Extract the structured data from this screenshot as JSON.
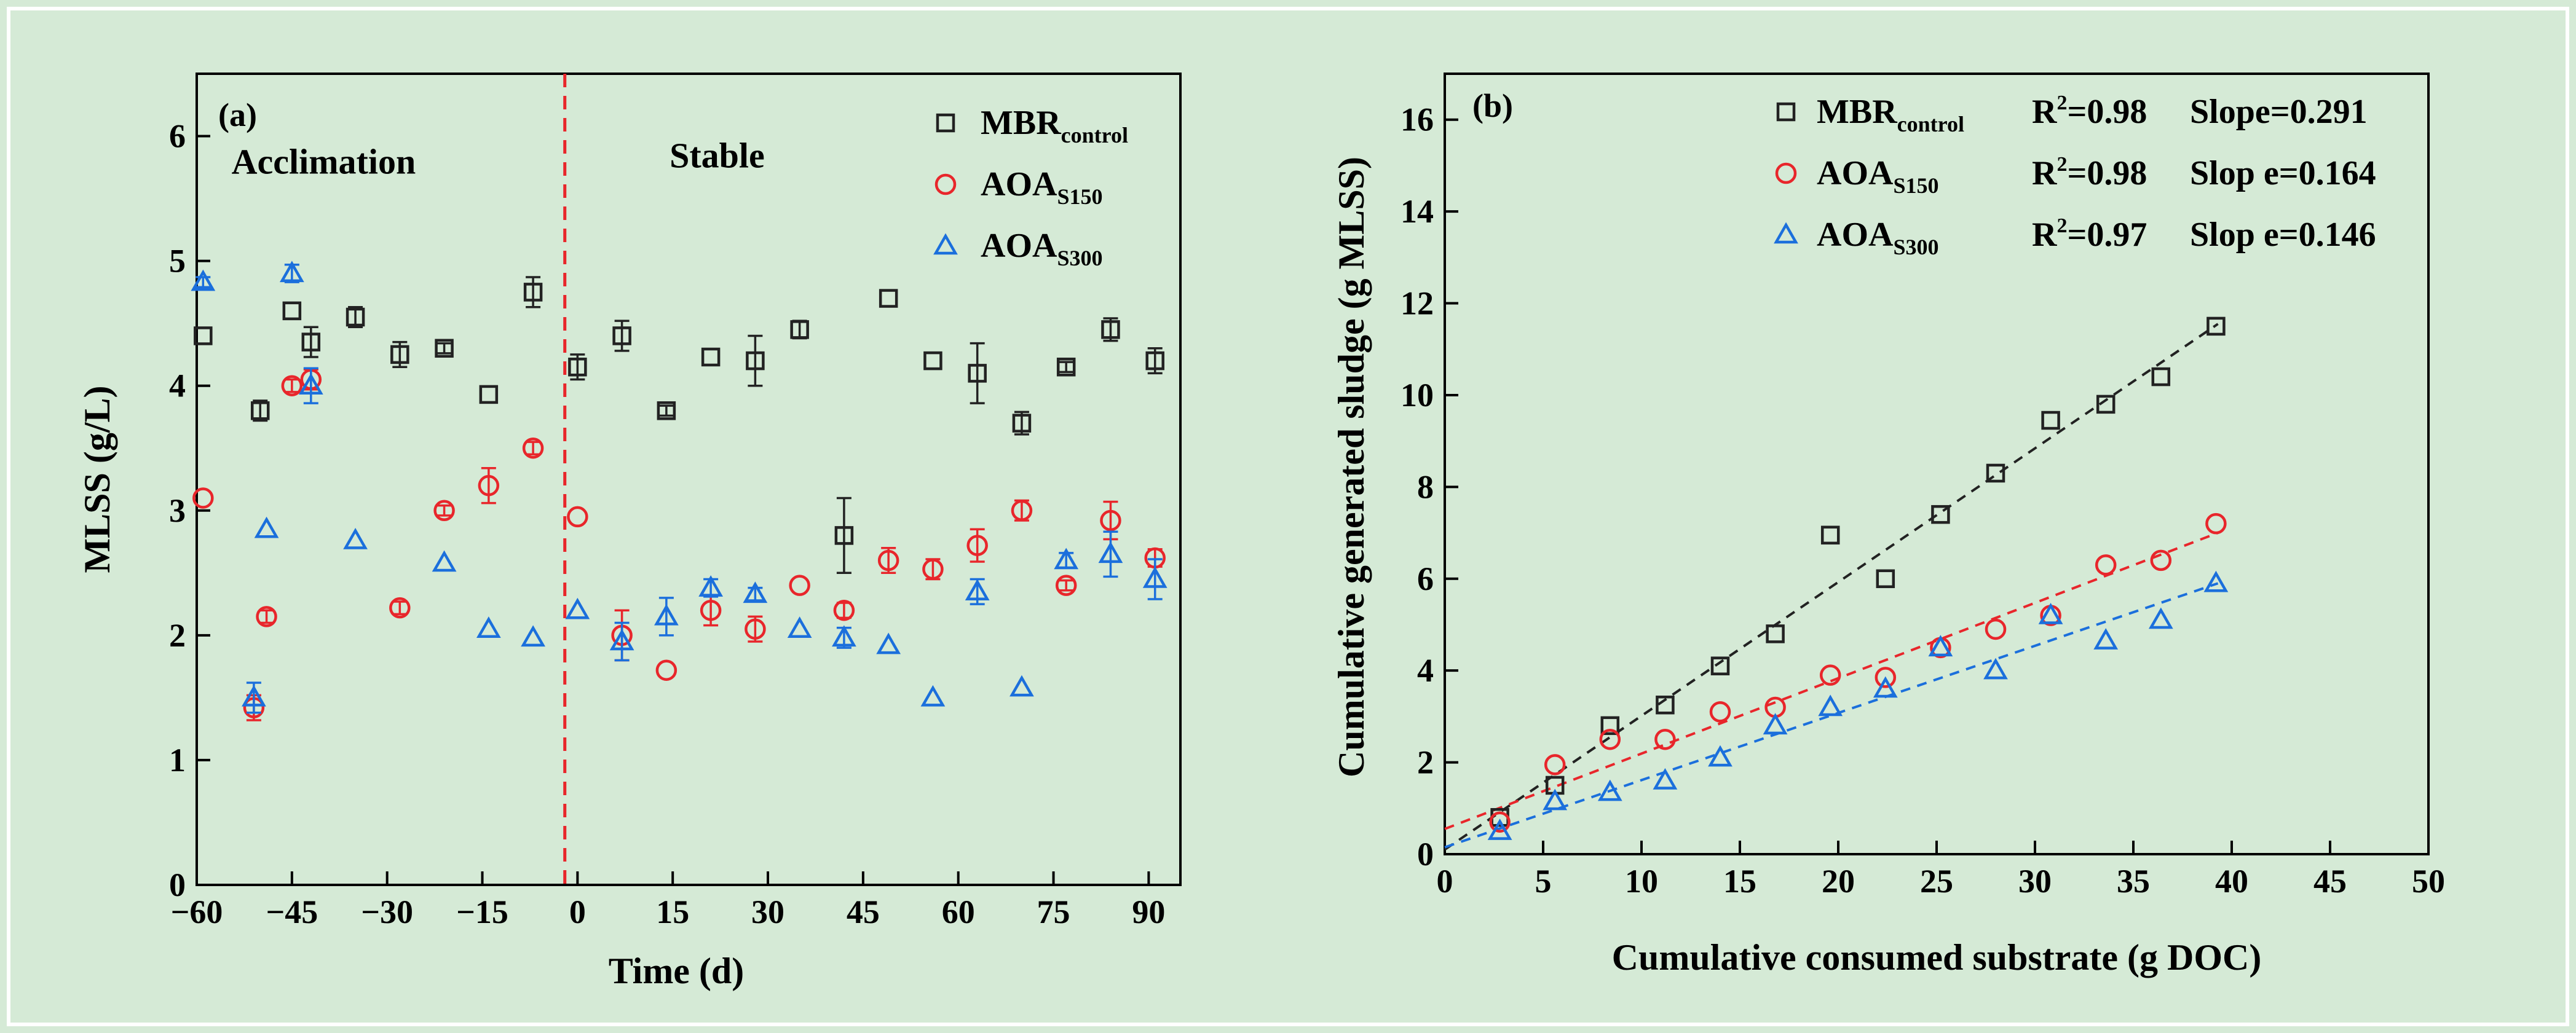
{
  "colors": {
    "background": "#d5ead6",
    "frame": "#ffffff",
    "mbr": "#222222",
    "aoa150": "#e8262b",
    "aoa300": "#1b6fdc",
    "divider": "#e8262b"
  },
  "chart_data": [
    {
      "type": "scatter",
      "panel_label": "(a)",
      "xlabel": "Time (d)",
      "ylabel": "MLSS (g/L)",
      "xlim": [
        -60,
        95
      ],
      "ylim": [
        0,
        6.5
      ],
      "x_ticks": [
        -60,
        -45,
        -30,
        -15,
        0,
        15,
        30,
        45,
        60,
        75,
        90
      ],
      "x_tick_labels": [
        "−60",
        "−45",
        "−30",
        "−15",
        "0",
        "15",
        "30",
        "45",
        "60",
        "75",
        "90"
      ],
      "y_ticks": [
        0,
        1,
        2,
        3,
        4,
        5,
        6
      ],
      "y_tick_labels": [
        "0",
        "1",
        "2",
        "3",
        "4",
        "5",
        "6"
      ],
      "divider_x": -2,
      "regions": [
        {
          "label": "Acclimation",
          "x": -40,
          "y": 5.7
        },
        {
          "label": "Stable",
          "x": 22,
          "y": 5.75
        }
      ],
      "legend_position": "top-right",
      "series": [
        {
          "name": "MBR",
          "subscript": "control",
          "marker": "square",
          "color": "#222222",
          "x": [
            -59,
            -50,
            -45,
            -42,
            -35,
            -28,
            -21,
            -14,
            -7,
            0,
            7,
            14,
            21,
            28,
            35,
            42,
            49,
            56,
            63,
            70,
            77,
            84,
            91
          ],
          "y": [
            4.4,
            3.8,
            4.6,
            4.35,
            4.55,
            4.25,
            4.3,
            3.93,
            4.75,
            4.15,
            4.4,
            3.8,
            4.23,
            4.2,
            4.45,
            2.8,
            4.7,
            4.2,
            4.1,
            3.7,
            4.15,
            4.45,
            4.2
          ],
          "err": [
            0.03,
            0.08,
            0.03,
            0.12,
            0.08,
            0.1,
            0.04,
            0.03,
            0.12,
            0.1,
            0.12,
            0.04,
            0.03,
            0.2,
            0.07,
            0.3,
            0.03,
            0.03,
            0.24,
            0.09,
            0.04,
            0.09,
            0.1
          ]
        },
        {
          "name": "AOA",
          "subscript": "S150",
          "marker": "circle",
          "color": "#e8262b",
          "x": [
            -59,
            -51,
            -49,
            -45,
            -42,
            -28,
            -21,
            -14,
            -7,
            0,
            7,
            14,
            21,
            28,
            35,
            42,
            49,
            56,
            63,
            70,
            77,
            84,
            91
          ],
          "y": [
            3.1,
            1.42,
            2.15,
            4.0,
            4.05,
            2.22,
            3.0,
            3.2,
            3.5,
            2.95,
            2.0,
            1.72,
            2.2,
            2.05,
            2.4,
            2.2,
            2.6,
            2.53,
            2.72,
            3.0,
            2.4,
            2.92,
            2.62
          ],
          "err": [
            0.03,
            0.1,
            0.05,
            0.05,
            0.08,
            0.05,
            0.04,
            0.14,
            0.05,
            0.03,
            0.2,
            0.03,
            0.12,
            0.1,
            0.03,
            0.06,
            0.1,
            0.08,
            0.13,
            0.08,
            0.04,
            0.15,
            0.07
          ]
        },
        {
          "name": "AOA",
          "subscript": "S300",
          "marker": "triangle",
          "color": "#1b6fdc",
          "x": [
            -59,
            -51,
            -49,
            -45,
            -42,
            -35,
            -21,
            -14,
            -7,
            0,
            7,
            14,
            21,
            28,
            35,
            42,
            49,
            56,
            63,
            70,
            77,
            84,
            91
          ],
          "y": [
            4.83,
            1.5,
            2.85,
            4.9,
            4.0,
            2.76,
            2.58,
            2.05,
            1.98,
            2.2,
            1.95,
            2.15,
            2.38,
            2.33,
            2.05,
            1.98,
            1.92,
            1.5,
            2.35,
            1.58,
            2.6,
            2.65,
            2.45
          ],
          "err": [
            0.04,
            0.12,
            0.03,
            0.07,
            0.14,
            0.03,
            0.03,
            0.03,
            0.03,
            0.03,
            0.15,
            0.15,
            0.07,
            0.05,
            0.03,
            0.08,
            0.03,
            0.03,
            0.1,
            0.03,
            0.06,
            0.18,
            0.16
          ]
        }
      ]
    },
    {
      "type": "scatter",
      "panel_label": "(b)",
      "xlabel": "Cumulative consumed substrate  (g DOC)",
      "ylabel": "Cumulative generated sludge  (g MLSS)",
      "xlim": [
        0,
        50
      ],
      "ylim": [
        0,
        17
      ],
      "x_ticks": [
        0,
        5,
        10,
        15,
        20,
        25,
        30,
        35,
        40,
        45,
        50
      ],
      "x_tick_labels": [
        "0",
        "5",
        "10",
        "15",
        "20",
        "25",
        "30",
        "35",
        "40",
        "45",
        "50"
      ],
      "y_ticks": [
        0,
        2,
        4,
        6,
        8,
        10,
        12,
        14,
        16
      ],
      "y_tick_labels": [
        "0",
        "2",
        "4",
        "6",
        "8",
        "10",
        "12",
        "14",
        "16"
      ],
      "legend_position": "top-right",
      "series": [
        {
          "name": "MBR",
          "subscript": "control",
          "marker": "square",
          "color": "#222222",
          "r2_text": "R",
          "r2_sup": "2",
          "r2_value": "=0.98",
          "slope_text": "Slope=0.291",
          "fit": {
            "x": [
              0,
              39.3
            ],
            "y": [
              0.1,
              11.55
            ]
          },
          "x": [
            2.8,
            5.6,
            8.4,
            11.2,
            14.0,
            16.8,
            19.6,
            22.4,
            25.2,
            28.0,
            30.8,
            33.6,
            36.4,
            39.2
          ],
          "y": [
            0.8,
            1.5,
            2.8,
            3.25,
            4.1,
            4.8,
            6.95,
            6.0,
            7.4,
            8.3,
            9.45,
            9.8,
            10.4,
            11.5
          ]
        },
        {
          "name": "AOA",
          "subscript": "S150",
          "marker": "circle",
          "color": "#e8262b",
          "r2_text": "R",
          "r2_sup": "2",
          "r2_value": "=0.98",
          "slope_text": "Slop e=0.164",
          "fit": {
            "x": [
              0,
              39.3
            ],
            "y": [
              0.55,
              7.0
            ]
          },
          "x": [
            2.8,
            5.6,
            8.4,
            11.2,
            14.0,
            16.8,
            19.6,
            22.4,
            25.2,
            28.0,
            30.8,
            33.6,
            36.4,
            39.2
          ],
          "y": [
            0.7,
            1.95,
            2.5,
            2.5,
            3.1,
            3.2,
            3.9,
            3.85,
            4.5,
            4.9,
            5.2,
            6.3,
            6.4,
            7.2
          ]
        },
        {
          "name": "AOA",
          "subscript": "S300",
          "marker": "triangle",
          "color": "#1b6fdc",
          "r2_text": "R",
          "r2_sup": "2",
          "r2_value": "=0.97",
          "slope_text": "Slop e=0.146",
          "fit": {
            "x": [
              0,
              39.3
            ],
            "y": [
              0.15,
              5.9
            ]
          },
          "x": [
            2.8,
            5.6,
            8.4,
            11.2,
            14.0,
            16.8,
            19.6,
            22.4,
            25.2,
            28.0,
            30.8,
            33.6,
            36.4,
            39.2
          ],
          "y": [
            0.5,
            1.15,
            1.35,
            1.6,
            2.1,
            2.8,
            3.2,
            3.6,
            4.5,
            4.0,
            5.2,
            4.65,
            5.1,
            5.9
          ]
        }
      ]
    }
  ]
}
